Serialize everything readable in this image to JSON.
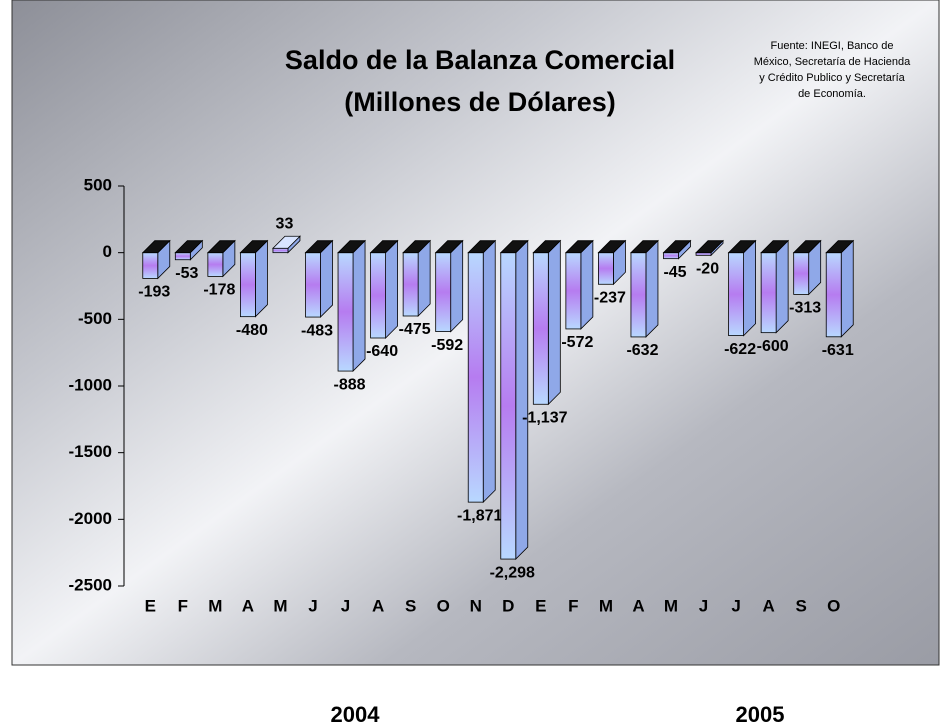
{
  "chart_data": {
    "type": "bar3d",
    "title_lines": [
      "Saldo de la Balanza Comercial",
      "(Millones de Dólares)"
    ],
    "source_lines": [
      "Fuente: INEGI, Banco de",
      "México, Secretaría de Hacienda",
      "y Crédito Publico y Secretaría",
      "de Economía."
    ],
    "categories": [
      "E",
      "F",
      "M",
      "A",
      "M",
      "J",
      "J",
      "A",
      "S",
      "O",
      "N",
      "D",
      "E",
      "F",
      "M",
      "A",
      "M",
      "J",
      "J",
      "A",
      "S",
      "O"
    ],
    "values": [
      -193,
      -53,
      -178,
      -480,
      33,
      -483,
      -888,
      -640,
      -475,
      -592,
      -1871,
      -2298,
      -1137,
      -572,
      -237,
      -632,
      -45,
      -20,
      -622,
      -600,
      -313,
      -631
    ],
    "value_labels": [
      "-193",
      "-53",
      "-178",
      "-480",
      "33",
      "-483",
      "-888",
      "-640",
      "-475",
      "-592",
      "-1,871",
      "-2,298",
      "-1,137",
      "-572",
      "-237",
      "-632",
      "-45",
      "-20",
      "-622",
      "-600",
      "-313",
      "-631"
    ],
    "ylim": [
      -2500,
      500
    ],
    "yticks": [
      500,
      0,
      -500,
      -1000,
      -1500,
      -2000,
      -2500
    ],
    "year_labels": [
      "2004",
      "2005"
    ]
  }
}
